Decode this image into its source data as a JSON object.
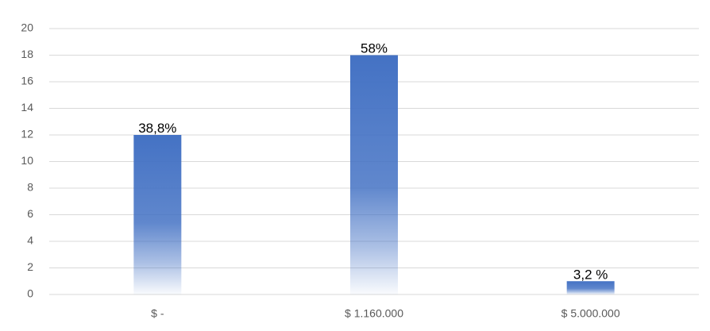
{
  "chart_data": {
    "type": "bar",
    "categories": [
      "$ -",
      "$ 1.160.000",
      "$ 5.000.000"
    ],
    "values": [
      12,
      18,
      1
    ],
    "annotations": [
      "38,8%",
      "58%",
      "3,2 %"
    ],
    "color": "#4472c4",
    "ylim": [
      0,
      20
    ],
    "yticks": [
      0,
      2,
      4,
      6,
      8,
      10,
      12,
      14,
      16,
      18,
      20
    ],
    "grid": true
  }
}
